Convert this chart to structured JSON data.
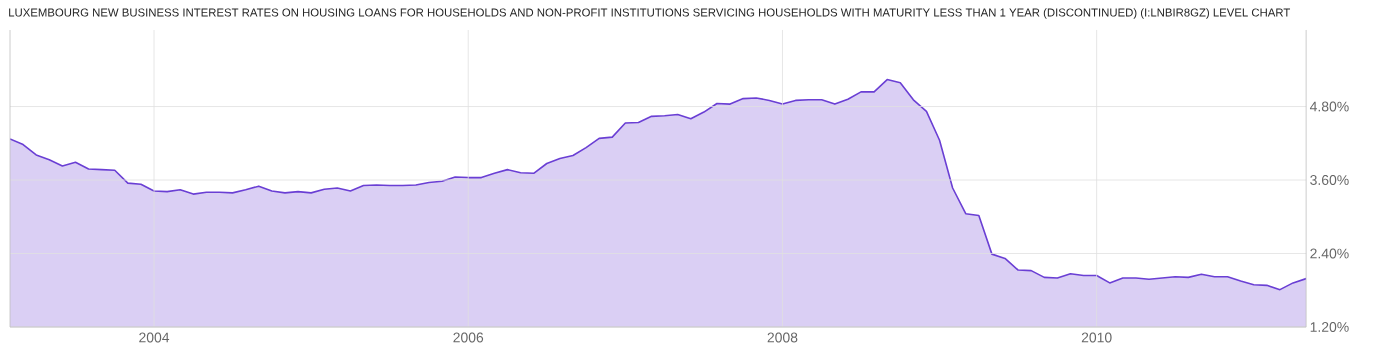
{
  "chart_data": {
    "type": "area",
    "title": "LUXEMBOURG NEW BUSINESS INTEREST RATES ON HOUSING LOANS FOR HOUSEHOLDS AND NON-PROFIT INSTITUTIONS SERVICING HOUSEHOLDS WITH MATURITY LESS THAN 1 YEAR (DISCONTINUED) (I:LNBIR8GZ) LEVEL CHART",
    "x": [
      "2003-02",
      "2003-03",
      "2003-04",
      "2003-05",
      "2003-06",
      "2003-07",
      "2003-08",
      "2003-09",
      "2003-10",
      "2003-11",
      "2003-12",
      "2004-01",
      "2004-02",
      "2004-03",
      "2004-04",
      "2004-05",
      "2004-06",
      "2004-07",
      "2004-08",
      "2004-09",
      "2004-10",
      "2004-11",
      "2004-12",
      "2005-01",
      "2005-02",
      "2005-03",
      "2005-04",
      "2005-05",
      "2005-06",
      "2005-07",
      "2005-08",
      "2005-09",
      "2005-10",
      "2005-11",
      "2005-12",
      "2006-01",
      "2006-02",
      "2006-03",
      "2006-04",
      "2006-05",
      "2006-06",
      "2006-07",
      "2006-08",
      "2006-09",
      "2006-10",
      "2006-11",
      "2006-12",
      "2007-01",
      "2007-02",
      "2007-03",
      "2007-04",
      "2007-05",
      "2007-06",
      "2007-07",
      "2007-08",
      "2007-09",
      "2007-10",
      "2007-11",
      "2007-12",
      "2008-01",
      "2008-02",
      "2008-03",
      "2008-04",
      "2008-05",
      "2008-06",
      "2008-07",
      "2008-08",
      "2008-09",
      "2008-10",
      "2008-11",
      "2008-12",
      "2009-01",
      "2009-02",
      "2009-03",
      "2009-04",
      "2009-05",
      "2009-06",
      "2009-07",
      "2009-08",
      "2009-09",
      "2009-10",
      "2009-11",
      "2009-12",
      "2010-01",
      "2010-02",
      "2010-03",
      "2010-04",
      "2010-05",
      "2010-06",
      "2010-07",
      "2010-08",
      "2010-09",
      "2010-10",
      "2010-11",
      "2010-12",
      "2011-01",
      "2011-02",
      "2011-03",
      "2011-04",
      "2011-05"
    ],
    "series": [
      {
        "color": "#6a3fd4",
        "values": [
          4.27,
          4.18,
          4.01,
          3.93,
          3.83,
          3.89,
          3.78,
          3.77,
          3.76,
          3.55,
          3.53,
          3.42,
          3.41,
          3.44,
          3.37,
          3.4,
          3.4,
          3.39,
          3.44,
          3.5,
          3.42,
          3.39,
          3.41,
          3.39,
          3.45,
          3.47,
          3.42,
          3.51,
          3.52,
          3.51,
          3.51,
          3.52,
          3.56,
          3.58,
          3.65,
          3.64,
          3.64,
          3.71,
          3.77,
          3.72,
          3.71,
          3.87,
          3.95,
          4.0,
          4.13,
          4.28,
          4.3,
          4.53,
          4.54,
          4.64,
          4.65,
          4.67,
          4.6,
          4.71,
          4.85,
          4.84,
          4.93,
          4.94,
          4.9,
          4.84,
          4.9,
          4.91,
          4.91,
          4.84,
          4.92,
          5.04,
          5.04,
          5.24,
          5.19,
          4.91,
          4.72,
          4.25,
          3.47,
          3.05,
          3.02,
          2.39,
          2.32,
          2.13,
          2.12,
          2.01,
          2.0,
          2.07,
          2.04,
          2.04,
          1.92,
          2.0,
          2.0,
          1.98,
          2.0,
          2.02,
          2.01,
          2.06,
          2.02,
          2.02,
          1.95,
          1.89,
          1.88,
          1.81,
          1.92,
          1.99
        ]
      }
    ],
    "xlim": [
      "2003-02",
      "2011-05"
    ],
    "xticks": [
      "2004",
      "2006",
      "2008",
      "2010"
    ],
    "ylim": [
      1.2,
      6.05
    ],
    "yticks": [
      {
        "value": 1.2,
        "label": "1.20%"
      },
      {
        "value": 2.4,
        "label": "2.40%"
      },
      {
        "value": 3.6,
        "label": "3.60%"
      },
      {
        "value": 4.8,
        "label": "4.80%"
      }
    ],
    "grid": true
  }
}
